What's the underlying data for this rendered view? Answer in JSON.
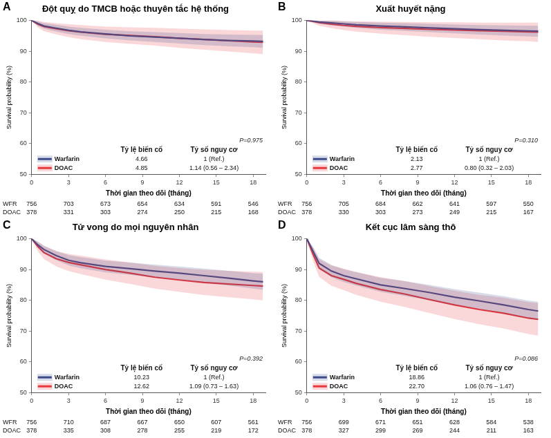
{
  "chart_data": [
    {
      "type": "line",
      "panel": "A",
      "title": "Đột quỵ do TMCB hoặc thuyên tắc hệ thống",
      "x_label": "Thời gian theo dõi (tháng)",
      "y_label": "Survival probability (%)",
      "x": [
        0,
        0.5,
        1,
        2,
        3,
        4,
        6,
        8,
        10,
        12,
        14,
        16,
        18,
        18.8
      ],
      "xlim": [
        0,
        19
      ],
      "xticks": [
        0,
        3,
        6,
        9,
        12,
        15,
        18
      ],
      "ylim": [
        50,
        100
      ],
      "yticks": [
        50,
        60,
        70,
        80,
        90,
        100
      ],
      "grid": false,
      "legend": "bottom",
      "series": [
        {
          "name": "Warfarin",
          "color": "#3b4a8c",
          "values": [
            100,
            99,
            98.2,
            97.5,
            96.8,
            96.3,
            95.6,
            95,
            94.6,
            94.2,
            93.8,
            93.5,
            93.3,
            93.2
          ],
          "ci_lower": [
            100,
            98.3,
            97.3,
            96.4,
            95.6,
            95,
            94.2,
            93.5,
            93,
            92.5,
            92,
            91.6,
            91.3,
            91.1
          ],
          "ci_upper": [
            100,
            99.7,
            99.1,
            98.6,
            98,
            97.6,
            97,
            96.5,
            96.2,
            95.9,
            95.6,
            95.4,
            95.3,
            95.3
          ]
        },
        {
          "name": "DOAC",
          "color": "#e8363a",
          "values": [
            100,
            98.8,
            98,
            97.3,
            96.7,
            96.2,
            95.5,
            95.1,
            94.7,
            94.2,
            93.8,
            93.4,
            93,
            92.9
          ],
          "ci_lower": [
            100,
            97.7,
            96.5,
            95.5,
            94.6,
            93.9,
            93,
            92.4,
            91.8,
            91.1,
            90.5,
            89.9,
            89.3,
            89.1
          ],
          "ci_upper": [
            100,
            99.9,
            99.5,
            99.1,
            98.8,
            98.5,
            98,
            97.8,
            97.6,
            97.3,
            97.1,
            96.9,
            96.7,
            96.7
          ]
        }
      ],
      "p_value": "P=0.975",
      "table": {
        "columns": [
          "Tỷ lệ biến cố",
          "Tỷ số nguy cơ"
        ],
        "rows": [
          [
            "4.66",
            "1 (Ref.)"
          ],
          [
            "4.85",
            "1.14 (0.56 – 2.34)"
          ]
        ]
      },
      "at_risk": {
        "times": [
          0,
          3,
          6,
          9,
          12,
          15,
          18
        ],
        "rows": [
          {
            "label": "WFR",
            "values": [
              756,
              703,
              673,
              654,
              634,
              591,
              546
            ]
          },
          {
            "label": "DOAC",
            "values": [
              378,
              331,
              303,
              274,
              250,
              215,
              168
            ]
          }
        ]
      }
    },
    {
      "type": "line",
      "panel": "B",
      "title": "Xuất huyết nặng",
      "x_label": "Thời gian theo dõi (tháng)",
      "y_label": "Survival probability (%)",
      "x": [
        0,
        0.5,
        1,
        2,
        3,
        4,
        6,
        8,
        10,
        12,
        14,
        16,
        18,
        18.8
      ],
      "xlim": [
        0,
        19
      ],
      "xticks": [
        0,
        3,
        6,
        9,
        12,
        15,
        18
      ],
      "ylim": [
        50,
        100
      ],
      "yticks": [
        50,
        60,
        70,
        80,
        90,
        100
      ],
      "grid": false,
      "legend": "bottom",
      "series": [
        {
          "name": "Warfarin",
          "color": "#3b4a8c",
          "values": [
            100,
            99.8,
            99.5,
            99.2,
            98.9,
            98.6,
            98.2,
            97.9,
            97.6,
            97.3,
            97,
            96.8,
            96.6,
            96.5
          ],
          "ci_lower": [
            100,
            99.4,
            98.9,
            98.4,
            98,
            97.6,
            97,
            96.6,
            96.2,
            95.8,
            95.4,
            95.1,
            94.8,
            94.7
          ],
          "ci_upper": [
            100,
            100,
            100,
            99.9,
            99.7,
            99.5,
            99.3,
            99.1,
            98.9,
            98.7,
            98.5,
            98.4,
            98.3,
            98.3
          ]
        },
        {
          "name": "DOAC",
          "color": "#e8363a",
          "values": [
            100,
            99.7,
            99.3,
            98.8,
            98.4,
            98.1,
            97.7,
            97.4,
            97.1,
            96.9,
            96.7,
            96.5,
            96.3,
            96.2
          ],
          "ci_lower": [
            100,
            99.1,
            98.3,
            97.5,
            96.9,
            96.4,
            95.7,
            95.2,
            94.7,
            94.3,
            93.9,
            93.5,
            93.2,
            93
          ],
          "ci_upper": [
            100,
            100,
            100,
            100,
            99.8,
            99.7,
            99.6,
            99.5,
            99.4,
            99.4,
            99.3,
            99.3,
            99.3,
            99.3
          ]
        }
      ],
      "p_value": "P=0.310",
      "table": {
        "columns": [
          "Tỷ lệ biến cố",
          "Tỷ số nguy cơ"
        ],
        "rows": [
          [
            "2.13",
            "1 (Ref.)"
          ],
          [
            "2.77",
            "0.80 (0.32 – 2.03)"
          ]
        ]
      },
      "at_risk": {
        "times": [
          0,
          3,
          6,
          9,
          12,
          15,
          18
        ],
        "rows": [
          {
            "label": "WFR",
            "values": [
              756,
              705,
              684,
              662,
              641,
              597,
              550
            ]
          },
          {
            "label": "DOAC",
            "values": [
              378,
              330,
              303,
              273,
              249,
              215,
              167
            ]
          }
        ]
      }
    },
    {
      "type": "line",
      "panel": "C",
      "title": "Tử vong do mọi nguyên nhân",
      "x_label": "Thời gian theo dõi (tháng)",
      "y_label": "Survival probability (%)",
      "x": [
        0,
        0.5,
        1,
        2,
        3,
        4,
        6,
        8,
        10,
        12,
        14,
        16,
        18,
        18.8
      ],
      "xlim": [
        0,
        19
      ],
      "xticks": [
        0,
        3,
        6,
        9,
        12,
        15,
        18
      ],
      "ylim": [
        50,
        100
      ],
      "yticks": [
        50,
        60,
        70,
        80,
        90,
        100
      ],
      "grid": false,
      "legend": "bottom",
      "series": [
        {
          "name": "Warfarin",
          "color": "#3b4a8c",
          "values": [
            100,
            98,
            96.5,
            94.5,
            93,
            92.2,
            91,
            90.3,
            89.5,
            88.8,
            88,
            87.2,
            86.3,
            86
          ],
          "ci_lower": [
            100,
            97,
            95.2,
            93,
            91.3,
            90.4,
            89.1,
            88.3,
            87.4,
            86.6,
            85.7,
            84.8,
            83.8,
            83.4
          ],
          "ci_upper": [
            100,
            99,
            97.8,
            96,
            94.7,
            94,
            92.9,
            92.3,
            91.6,
            91,
            90.3,
            89.6,
            88.8,
            88.6
          ]
        },
        {
          "name": "DOAC",
          "color": "#e8363a",
          "values": [
            100,
            97.5,
            95.5,
            93.5,
            92.3,
            91.5,
            90,
            88.8,
            87.5,
            86.6,
            85.8,
            85.3,
            84.8,
            84.6
          ],
          "ci_lower": [
            100,
            95.9,
            93.4,
            91,
            89.5,
            88.5,
            86.7,
            85.3,
            83.8,
            82.7,
            81.7,
            81,
            80.3,
            80
          ],
          "ci_upper": [
            100,
            99.1,
            97.6,
            96,
            95.1,
            94.5,
            93.3,
            92.3,
            91.2,
            90.5,
            89.9,
            89.6,
            89.3,
            89.2
          ]
        }
      ],
      "p_value": "P=0.392",
      "table": {
        "columns": [
          "Tỷ lệ biến cố",
          "Tỷ số nguy cơ"
        ],
        "rows": [
          [
            "10.23",
            "1 (Ref.)"
          ],
          [
            "12.62",
            "1.09 (0.73 – 1.63)"
          ]
        ]
      },
      "at_risk": {
        "times": [
          0,
          3,
          6,
          9,
          12,
          15,
          18
        ],
        "rows": [
          {
            "label": "WFR",
            "values": [
              756,
              710,
              687,
              667,
              650,
              607,
              561
            ]
          },
          {
            "label": "DOAC",
            "values": [
              378,
              335,
              308,
              278,
              255,
              219,
              172
            ]
          }
        ]
      }
    },
    {
      "type": "line",
      "panel": "D",
      "title": "Kết cục lâm sàng thô",
      "x_label": "Thời gian theo dõi (tháng)",
      "y_label": "Survival probability (%)",
      "x": [
        0,
        0.5,
        1,
        2,
        3,
        4,
        6,
        8,
        10,
        12,
        14,
        16,
        18,
        18.8
      ],
      "xlim": [
        0,
        19
      ],
      "xticks": [
        0,
        3,
        6,
        9,
        12,
        15,
        18
      ],
      "ylim": [
        50,
        100
      ],
      "yticks": [
        50,
        60,
        70,
        80,
        90,
        100
      ],
      "grid": false,
      "legend": "bottom",
      "series": [
        {
          "name": "Warfarin",
          "color": "#3b4a8c",
          "values": [
            100,
            96,
            92,
            89.5,
            88,
            87,
            85,
            83.8,
            82.5,
            81,
            79.8,
            78.5,
            77,
            76.5
          ],
          "ci_lower": [
            100,
            94.6,
            90.2,
            87.5,
            85.9,
            84.8,
            82.7,
            81.4,
            80,
            78.4,
            77.1,
            75.7,
            74.1,
            73.5
          ],
          "ci_upper": [
            100,
            97.4,
            93.8,
            91.5,
            90.1,
            89.2,
            87.3,
            86.2,
            85,
            83.6,
            82.5,
            81.3,
            79.9,
            79.5
          ]
        },
        {
          "name": "DOAC",
          "color": "#e8363a",
          "values": [
            100,
            95,
            90.5,
            88,
            86.8,
            85.5,
            83.5,
            82,
            80.2,
            78.5,
            77,
            75.8,
            74.2,
            73.8
          ],
          "ci_lower": [
            100,
            92.8,
            87.6,
            84.7,
            83.3,
            81.8,
            79.5,
            77.8,
            75.8,
            73.9,
            72.2,
            70.8,
            69,
            68.5
          ],
          "ci_upper": [
            100,
            97.2,
            93.4,
            91.3,
            90.3,
            89.2,
            87.5,
            86.2,
            84.6,
            83.1,
            81.8,
            80.8,
            79.4,
            79.1
          ]
        }
      ],
      "p_value": "P=0.086",
      "table": {
        "columns": [
          "Tỷ lệ biến cố",
          "Tỷ số nguy cơ"
        ],
        "rows": [
          [
            "18.86",
            "1 (Ref.)"
          ],
          [
            "22.70",
            "1.06 (0.76 – 1.47)"
          ]
        ]
      },
      "at_risk": {
        "times": [
          0,
          3,
          6,
          9,
          12,
          15,
          18
        ],
        "rows": [
          {
            "label": "WFR",
            "values": [
              756,
              699,
              671,
              651,
              628,
              584,
              538
            ]
          },
          {
            "label": "DOAC",
            "values": [
              378,
              327,
              299,
              269,
              244,
              211,
              163
            ]
          }
        ]
      }
    }
  ]
}
